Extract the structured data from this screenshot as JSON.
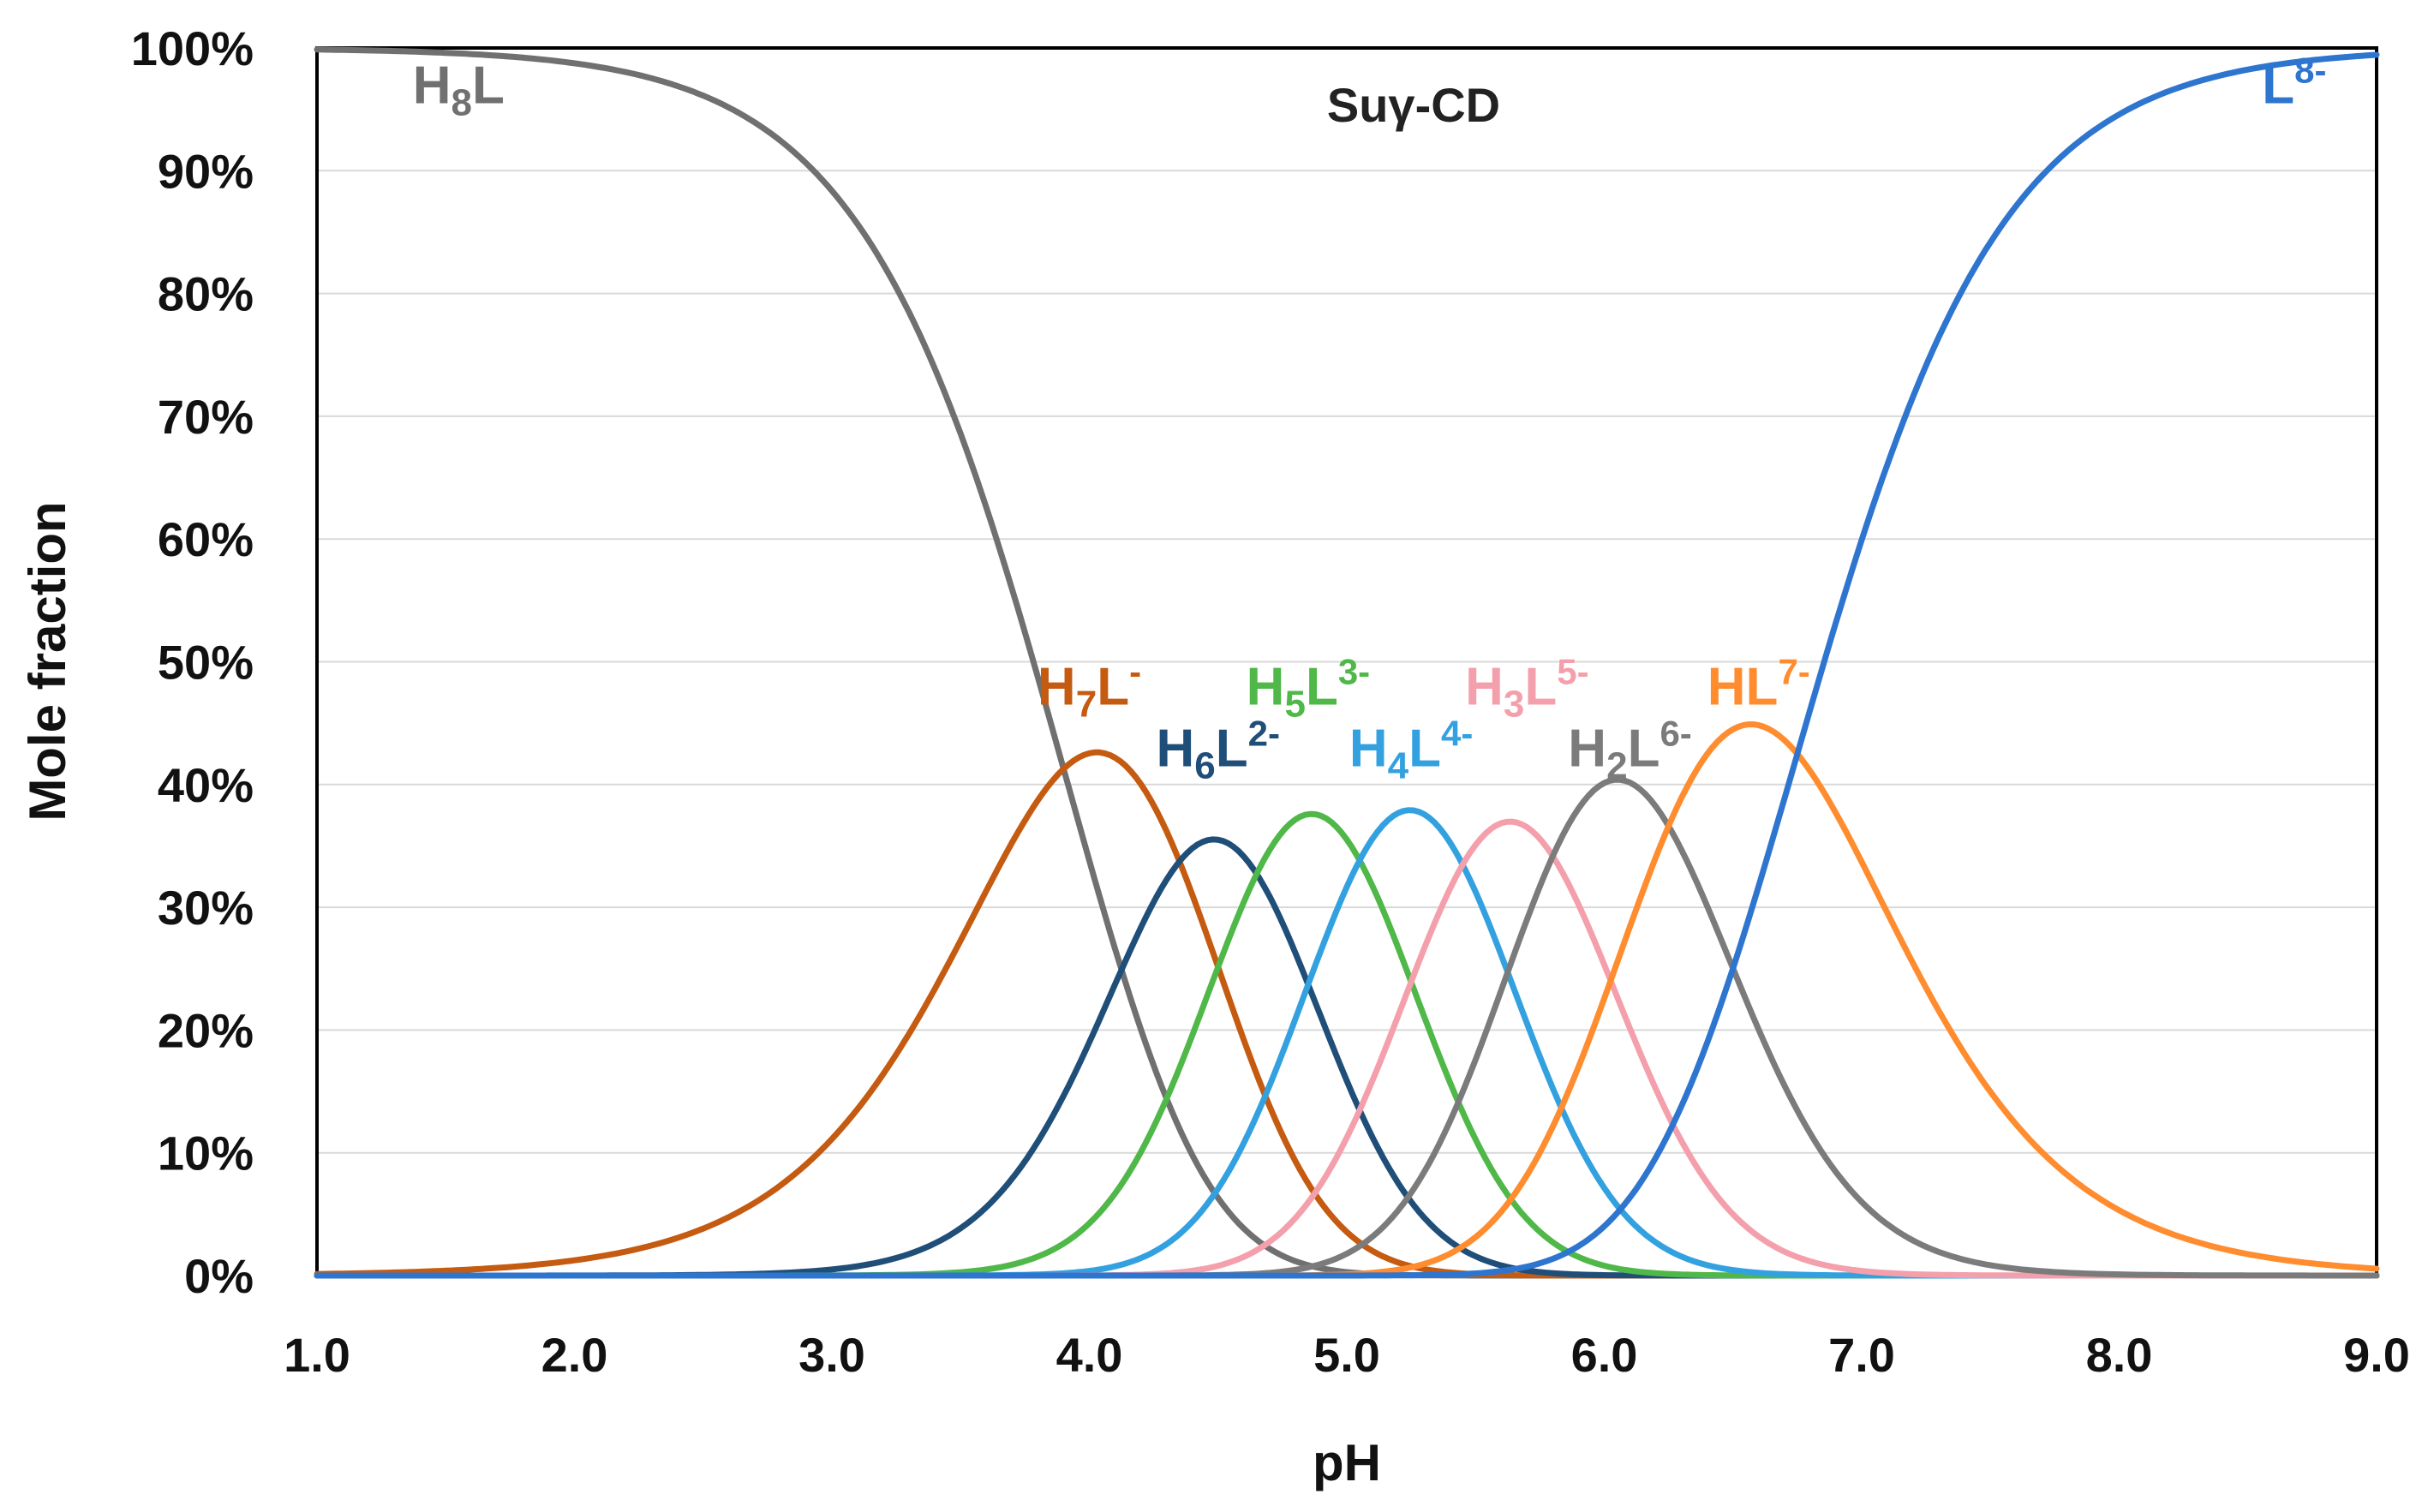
{
  "chart_data": {
    "type": "line",
    "title": "Suγ-CD",
    "xlabel": "pH",
    "ylabel": "Mole fraction",
    "xlim": [
      1.0,
      9.0
    ],
    "ylim": [
      0,
      100
    ],
    "x_ticks": [
      "1.0",
      "2.0",
      "3.0",
      "4.0",
      "5.0",
      "6.0",
      "7.0",
      "8.0",
      "9.0"
    ],
    "y_ticks": [
      "0%",
      "10%",
      "20%",
      "30%",
      "40%",
      "50%",
      "60%",
      "70%",
      "80%",
      "90%",
      "100%"
    ],
    "grid": true,
    "pKa": [
      3.9,
      4.35,
      4.65,
      5.05,
      5.45,
      5.8,
      6.25,
      6.75
    ],
    "series": [
      {
        "name": "H8L",
        "label": {
          "base": "H",
          "sub": "8",
          "mid": "L",
          "sup": ""
        },
        "color": "#707070",
        "label_at": [
          1.55,
          95.5
        ]
      },
      {
        "name": "H7L-",
        "label": {
          "base": "H",
          "sub": "7",
          "mid": "L",
          "sup": "-"
        },
        "color": "#c55a11",
        "label_at": [
          4.0,
          46.5
        ]
      },
      {
        "name": "H6L2-",
        "label": {
          "base": "H",
          "sub": "6",
          "mid": "L",
          "sup": "2-"
        },
        "color": "#1f4e79",
        "label_at": [
          4.5,
          41.5
        ]
      },
      {
        "name": "H5L3-",
        "label": {
          "base": "H",
          "sub": "5",
          "mid": "L",
          "sup": "3-"
        },
        "color": "#4fb848",
        "label_at": [
          4.85,
          46.5
        ]
      },
      {
        "name": "H4L4-",
        "label": {
          "base": "H",
          "sub": "4",
          "mid": "L",
          "sup": "4-"
        },
        "color": "#33a1e0",
        "label_at": [
          5.25,
          41.5
        ]
      },
      {
        "name": "H3L5-",
        "label": {
          "base": "H",
          "sub": "3",
          "mid": "L",
          "sup": "5-"
        },
        "color": "#f4a0ac",
        "label_at": [
          5.7,
          46.5
        ]
      },
      {
        "name": "H2L6-",
        "label": {
          "base": "H",
          "sub": "2",
          "mid": "L",
          "sup": "6-"
        },
        "color": "#7b7b7b",
        "label_at": [
          6.1,
          41.5
        ]
      },
      {
        "name": "HL7-",
        "label": {
          "base": "HL",
          "sub": "",
          "mid": "",
          "sup": "7-"
        },
        "color": "#ff8c2e",
        "label_at": [
          6.6,
          46.5
        ]
      },
      {
        "name": "L8-",
        "label": {
          "base": "L",
          "sub": "",
          "mid": "",
          "sup": "8-"
        },
        "color": "#2e75d0",
        "label_at": [
          8.68,
          95.5
        ]
      }
    ]
  }
}
